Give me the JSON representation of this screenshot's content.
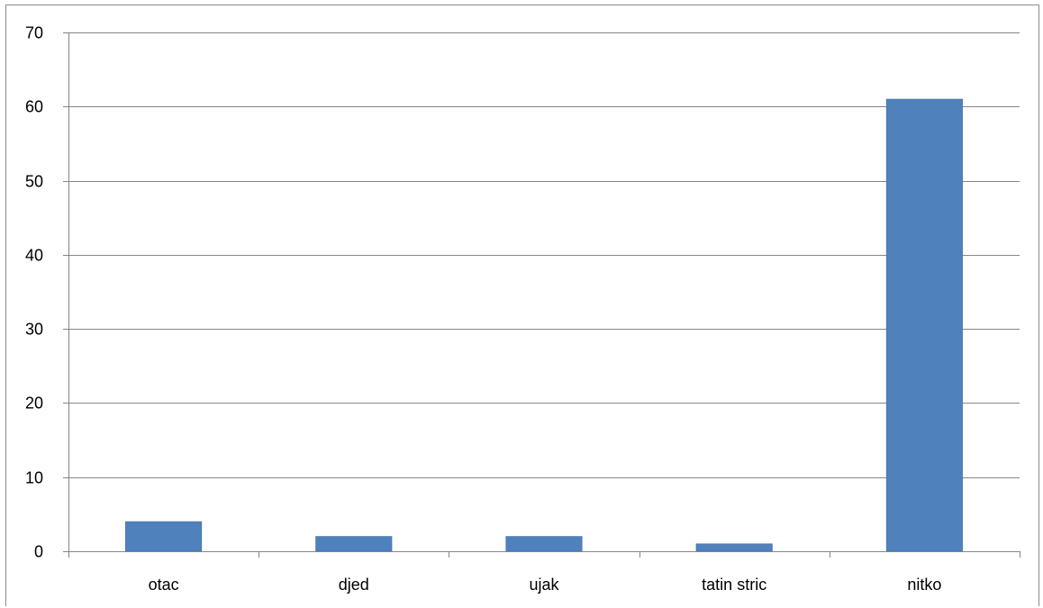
{
  "chart_data": {
    "type": "bar",
    "categories": [
      "otac",
      "djed",
      "ujak",
      "tatin stric",
      "nitko"
    ],
    "values": [
      4,
      2,
      2,
      1,
      61
    ],
    "ylim": [
      0,
      70
    ],
    "yticks": [
      "0",
      "10",
      "20",
      "30",
      "40",
      "50",
      "60",
      "70"
    ],
    "grid": true,
    "legend": "none",
    "colors": {
      "bar": "#4f81bd",
      "bar_edge": "#41719c",
      "grid": "#868686",
      "axis": "#868686"
    }
  }
}
